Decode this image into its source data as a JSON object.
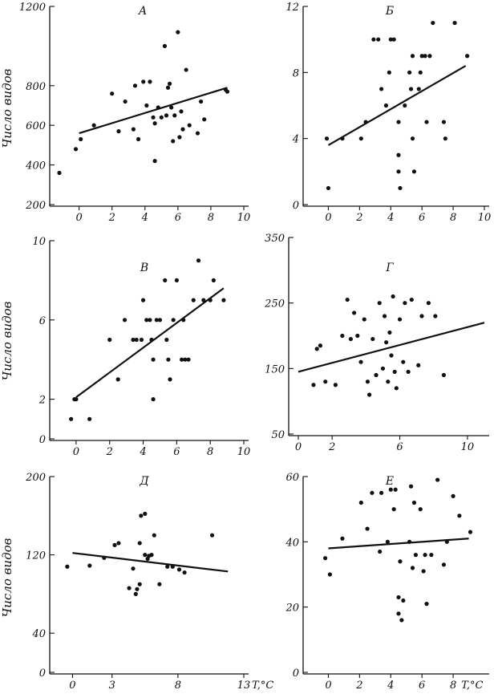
{
  "ylabel": "Число видов",
  "chart_data": [
    {
      "type": "scatter",
      "title": "А",
      "ylabel": "Число видов",
      "xlabel": "",
      "xlim": [
        -1.2,
        10
      ],
      "ylim": [
        200,
        1200
      ],
      "xticks": [
        0,
        2,
        4,
        6,
        8,
        10
      ],
      "yticks": [
        200,
        400,
        600,
        800,
        1200
      ],
      "trend": [
        [
          0,
          560
        ],
        [
          9,
          790
        ]
      ],
      "points": [
        [
          -1.2,
          360
        ],
        [
          -0.2,
          480
        ],
        [
          0.1,
          530
        ],
        [
          0.9,
          600
        ],
        [
          2.0,
          760
        ],
        [
          2.4,
          570
        ],
        [
          2.8,
          720
        ],
        [
          3.3,
          580
        ],
        [
          3.4,
          800
        ],
        [
          3.6,
          530
        ],
        [
          3.9,
          820
        ],
        [
          4.1,
          700
        ],
        [
          4.3,
          820
        ],
        [
          4.5,
          640
        ],
        [
          4.6,
          420
        ],
        [
          4.6,
          610
        ],
        [
          4.8,
          690
        ],
        [
          5.0,
          640
        ],
        [
          5.2,
          1000
        ],
        [
          5.3,
          650
        ],
        [
          5.4,
          790
        ],
        [
          5.5,
          810
        ],
        [
          5.6,
          690
        ],
        [
          5.7,
          520
        ],
        [
          5.8,
          650
        ],
        [
          6.0,
          1070
        ],
        [
          6.1,
          540
        ],
        [
          6.2,
          670
        ],
        [
          6.3,
          580
        ],
        [
          6.5,
          880
        ],
        [
          6.7,
          600
        ],
        [
          7.2,
          560
        ],
        [
          7.4,
          720
        ],
        [
          7.6,
          630
        ],
        [
          8.9,
          780
        ],
        [
          9.0,
          770
        ]
      ]
    },
    {
      "type": "scatter",
      "title": "Б",
      "xlabel": "",
      "xlim": [
        -1,
        10
      ],
      "ylim": [
        0,
        12
      ],
      "xticks": [
        0,
        2,
        4,
        6,
        8,
        10
      ],
      "yticks": [
        0,
        4,
        8,
        12
      ],
      "trend": [
        [
          0,
          3.6
        ],
        [
          8.8,
          8.4
        ]
      ],
      "points": [
        [
          -0.1,
          4
        ],
        [
          0,
          1
        ],
        [
          0.9,
          4
        ],
        [
          2.1,
          4
        ],
        [
          2.4,
          5
        ],
        [
          2.9,
          10
        ],
        [
          3.2,
          10
        ],
        [
          3.4,
          7
        ],
        [
          3.7,
          6
        ],
        [
          4.0,
          10
        ],
        [
          3.9,
          8
        ],
        [
          4.2,
          10
        ],
        [
          4.5,
          5
        ],
        [
          4.5,
          3
        ],
        [
          4.5,
          2
        ],
        [
          4.6,
          1
        ],
        [
          4.9,
          6
        ],
        [
          5.2,
          8
        ],
        [
          5.3,
          7
        ],
        [
          5.4,
          9
        ],
        [
          5.4,
          4
        ],
        [
          5.5,
          2
        ],
        [
          5.8,
          7
        ],
        [
          5.9,
          8
        ],
        [
          6.0,
          9
        ],
        [
          6.2,
          9
        ],
        [
          6.3,
          5
        ],
        [
          6.5,
          9
        ],
        [
          6.7,
          11
        ],
        [
          7.4,
          5
        ],
        [
          7.5,
          4
        ],
        [
          8.1,
          11
        ],
        [
          8.9,
          9
        ]
      ]
    },
    {
      "type": "scatter",
      "title": "В",
      "ylabel": "Число видов",
      "xlabel": "",
      "xlim": [
        -1,
        10
      ],
      "ylim": [
        0,
        10
      ],
      "xticks": [
        0,
        2,
        4,
        6,
        8,
        10
      ],
      "yticks": [
        0,
        2,
        6,
        10
      ],
      "trend": [
        [
          0,
          2.1
        ],
        [
          8.8,
          7.6
        ]
      ],
      "points": [
        [
          -0.1,
          2
        ],
        [
          0,
          2
        ],
        [
          -0.3,
          1
        ],
        [
          0.8,
          1
        ],
        [
          2.0,
          5
        ],
        [
          2.5,
          3
        ],
        [
          2.9,
          6
        ],
        [
          3.4,
          5
        ],
        [
          3.6,
          5
        ],
        [
          3.9,
          5
        ],
        [
          4.0,
          7
        ],
        [
          4.2,
          6
        ],
        [
          4.4,
          6
        ],
        [
          4.5,
          5
        ],
        [
          4.6,
          2
        ],
        [
          4.6,
          4
        ],
        [
          4.8,
          6
        ],
        [
          5.0,
          6
        ],
        [
          5.3,
          8
        ],
        [
          5.4,
          5
        ],
        [
          5.5,
          4
        ],
        [
          5.6,
          3
        ],
        [
          5.8,
          6
        ],
        [
          6.0,
          8
        ],
        [
          6.3,
          4
        ],
        [
          6.4,
          6
        ],
        [
          6.5,
          4
        ],
        [
          6.7,
          4
        ],
        [
          7.0,
          7
        ],
        [
          7.3,
          9
        ],
        [
          7.6,
          7
        ],
        [
          8.0,
          7
        ],
        [
          8.2,
          8
        ],
        [
          8.8,
          7
        ]
      ]
    },
    {
      "type": "scatter",
      "title": "Г",
      "xlabel": "",
      "xlim": [
        0,
        11
      ],
      "ylim": [
        50,
        350
      ],
      "xticks": [
        0,
        2,
        6,
        10
      ],
      "yticks": [
        50,
        150,
        250,
        350
      ],
      "trend": [
        [
          0,
          145
        ],
        [
          11,
          220
        ]
      ],
      "points": [
        [
          0.9,
          125
        ],
        [
          1.1,
          180
        ],
        [
          1.3,
          185
        ],
        [
          1.6,
          130
        ],
        [
          2.2,
          125
        ],
        [
          2.6,
          200
        ],
        [
          2.9,
          255
        ],
        [
          3.1,
          195
        ],
        [
          3.3,
          235
        ],
        [
          3.5,
          200
        ],
        [
          3.7,
          160
        ],
        [
          3.9,
          225
        ],
        [
          4.1,
          130
        ],
        [
          4.2,
          110
        ],
        [
          4.4,
          195
        ],
        [
          4.6,
          140
        ],
        [
          4.8,
          250
        ],
        [
          5.0,
          150
        ],
        [
          5.1,
          230
        ],
        [
          5.2,
          190
        ],
        [
          5.3,
          130
        ],
        [
          5.4,
          205
        ],
        [
          5.5,
          170
        ],
        [
          5.6,
          260
        ],
        [
          5.7,
          145
        ],
        [
          5.8,
          120
        ],
        [
          6.0,
          225
        ],
        [
          6.2,
          160
        ],
        [
          6.3,
          250
        ],
        [
          6.5,
          145
        ],
        [
          6.7,
          255
        ],
        [
          7.1,
          155
        ],
        [
          7.3,
          230
        ],
        [
          7.7,
          250
        ],
        [
          8.1,
          230
        ],
        [
          8.6,
          140
        ]
      ]
    },
    {
      "type": "scatter",
      "title": "Д",
      "ylabel": "Число видов",
      "xlabel": "T,°C",
      "xlim": [
        -1,
        13
      ],
      "ylim": [
        0,
        200
      ],
      "xticks": [
        0,
        3,
        8,
        13
      ],
      "yticks": [
        0,
        40,
        120,
        200
      ],
      "trend": [
        [
          0,
          122
        ],
        [
          11.8,
          103
        ]
      ],
      "points": [
        [
          -0.4,
          108
        ],
        [
          1.3,
          109
        ],
        [
          2.4,
          117
        ],
        [
          3.2,
          130
        ],
        [
          3.5,
          132
        ],
        [
          4.3,
          86
        ],
        [
          4.6,
          106
        ],
        [
          4.8,
          80
        ],
        [
          4.9,
          85
        ],
        [
          5.1,
          132
        ],
        [
          5.1,
          90
        ],
        [
          5.2,
          160
        ],
        [
          5.5,
          162
        ],
        [
          5.5,
          120
        ],
        [
          5.7,
          116
        ],
        [
          5.8,
          119
        ],
        [
          6.0,
          120
        ],
        [
          6.2,
          140
        ],
        [
          6.6,
          90
        ],
        [
          7.2,
          108
        ],
        [
          7.6,
          108
        ],
        [
          8.1,
          105
        ],
        [
          8.5,
          102
        ],
        [
          10.6,
          140
        ]
      ]
    },
    {
      "type": "scatter",
      "title": "Е",
      "xlabel": "T,°C",
      "xlim": [
        -1,
        10
      ],
      "ylim": [
        0,
        60
      ],
      "xticks": [
        0,
        2,
        4,
        6,
        8
      ],
      "yticks": [
        0,
        20,
        40,
        60
      ],
      "trend": [
        [
          0,
          38
        ],
        [
          9,
          41
        ]
      ],
      "points": [
        [
          -0.2,
          35
        ],
        [
          0.1,
          30
        ],
        [
          0.9,
          41
        ],
        [
          2.1,
          52
        ],
        [
          2.5,
          44
        ],
        [
          2.8,
          55
        ],
        [
          3.3,
          37
        ],
        [
          3.4,
          55
        ],
        [
          3.8,
          40
        ],
        [
          4.0,
          56
        ],
        [
          4.2,
          50
        ],
        [
          4.3,
          56
        ],
        [
          4.5,
          23
        ],
        [
          4.5,
          18
        ],
        [
          4.6,
          34
        ],
        [
          4.7,
          16
        ],
        [
          4.8,
          22
        ],
        [
          5.2,
          40
        ],
        [
          5.3,
          57
        ],
        [
          5.4,
          32
        ],
        [
          5.5,
          52
        ],
        [
          5.6,
          36
        ],
        [
          5.9,
          50
        ],
        [
          6.1,
          31
        ],
        [
          6.2,
          36
        ],
        [
          6.3,
          21
        ],
        [
          6.6,
          36
        ],
        [
          7.0,
          59
        ],
        [
          7.4,
          33
        ],
        [
          7.6,
          40
        ],
        [
          8.0,
          54
        ],
        [
          8.4,
          48
        ],
        [
          9.1,
          43
        ]
      ]
    }
  ]
}
